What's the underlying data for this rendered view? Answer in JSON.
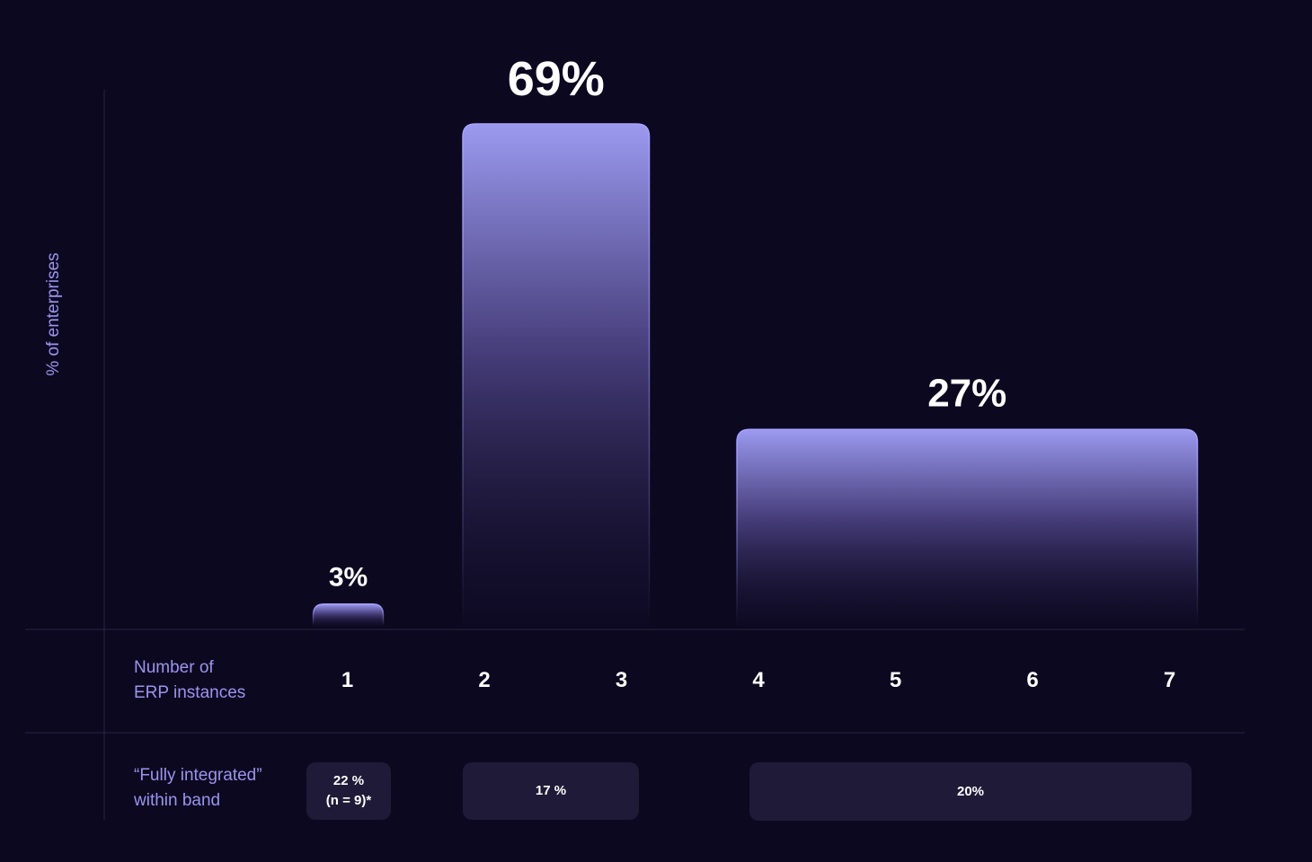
{
  "chart_data": {
    "type": "bar",
    "ylabel": "% of enterprises",
    "xlabel": "Number of\nERP instances",
    "x_ticks": [
      "1",
      "2",
      "3",
      "4",
      "5",
      "6",
      "7"
    ],
    "bars": [
      {
        "span": [
          1,
          1
        ],
        "value": 3,
        "label": "3%"
      },
      {
        "span": [
          2,
          3
        ],
        "value": 69,
        "label": "69%"
      },
      {
        "span": [
          4,
          7
        ],
        "value": 27,
        "label": "27%"
      }
    ],
    "ylim": [
      0,
      69
    ],
    "integration_row": {
      "label": "“Fully integrated”\nwithin band",
      "values": [
        "22 %\n(n = 9)*",
        "17 %",
        "20%"
      ]
    },
    "colors": {
      "background": "#0c0820",
      "bar_top": "#9b9af0",
      "bar_edge": "#a9a3ff",
      "label": "#9b94ee",
      "cell": "#1f1a38"
    }
  }
}
